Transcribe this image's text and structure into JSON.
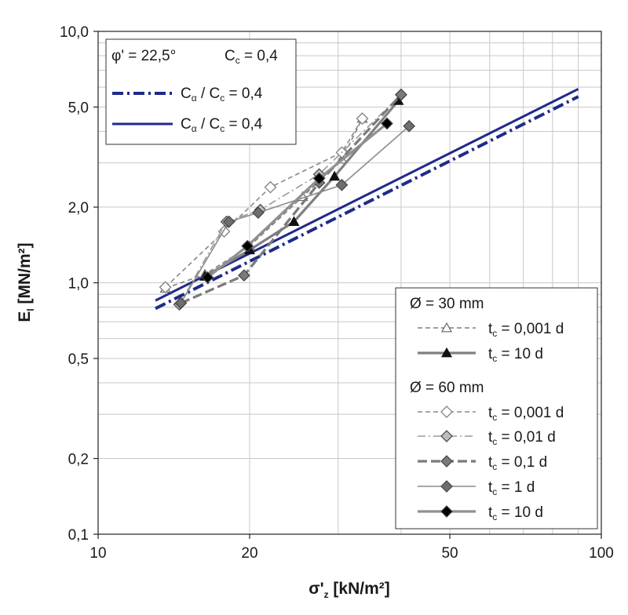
{
  "chart_data": {
    "type": "line",
    "x_scale": "log",
    "y_scale": "log",
    "xlim": [
      10,
      100
    ],
    "ylim": [
      0.1,
      10
    ],
    "grid": true,
    "x_ticks": [
      {
        "value": 10,
        "label": "10"
      },
      {
        "value": 20,
        "label": "20"
      },
      {
        "value": 50,
        "label": "50"
      },
      {
        "value": 100,
        "label": "100"
      }
    ],
    "y_ticks": [
      {
        "value": 0.1,
        "label": "0,1"
      },
      {
        "value": 0.2,
        "label": "0,2"
      },
      {
        "value": 0.5,
        "label": "0,5"
      },
      {
        "value": 1,
        "label": "1,0"
      },
      {
        "value": 2,
        "label": "2,0"
      },
      {
        "value": 5,
        "label": "5,0"
      },
      {
        "value": 10,
        "label": "10,0"
      }
    ],
    "xlabel": {
      "main": "σ'",
      "sub": "z",
      "tail": " [kN/m²]"
    },
    "ylabel": {
      "main": "E",
      "sub": "l",
      "tail": " [MN/m²]"
    },
    "legend_top": {
      "position": "top-left",
      "header": {
        "phi": "φ' = 22,5°",
        "cc": "C",
        "cc_sub": "c",
        "cc_tail": " = 0,4"
      },
      "entries": [
        {
          "pre": "C",
          "pre_sub": "α",
          "mid": " / C",
          "mid_sub": "c",
          "tail": " = 0,4",
          "style": "dashdot"
        },
        {
          "pre": "C",
          "pre_sub": "α",
          "mid": " / C",
          "mid_sub": "c",
          "tail": " = 0,4",
          "style": "solid"
        }
      ]
    },
    "legend_bottom": {
      "position": "bottom-right",
      "groups": [
        {
          "title": "Ø = 30 mm",
          "entries": [
            {
              "label_pre": "t",
              "label_sub": "c",
              "label_tail": " = 0,001 d",
              "series": 0
            },
            {
              "label_pre": "t",
              "label_sub": "c",
              "label_tail": " = 10 d",
              "series": 1
            }
          ]
        },
        {
          "title": "Ø = 60 mm",
          "entries": [
            {
              "label_pre": "t",
              "label_sub": "c",
              "label_tail": " = 0,001 d",
              "series": 2
            },
            {
              "label_pre": "t",
              "label_sub": "c",
              "label_tail": " = 0,01 d",
              "series": 3
            },
            {
              "label_pre": "t",
              "label_sub": "c",
              "label_tail": " = 0,1 d",
              "series": 4
            },
            {
              "label_pre": "t",
              "label_sub": "c",
              "label_tail": " = 1 d",
              "series": 5
            },
            {
              "label_pre": "t",
              "label_sub": "c",
              "label_tail": " = 10 d",
              "series": 6
            }
          ]
        }
      ]
    },
    "model_lines": [
      {
        "style": "dashdot",
        "color": "#1f2a8a",
        "x": [
          13,
          90
        ],
        "y": [
          0.79,
          5.5
        ]
      },
      {
        "style": "solid",
        "color": "#1f2a8a",
        "x": [
          13,
          90
        ],
        "y": [
          0.85,
          5.9
        ]
      }
    ],
    "series": [
      {
        "marker": "triangle-open",
        "line": "dashed",
        "color": "#7f7f7f",
        "fill": "#ffffff",
        "x": [
          13.6,
          16.3,
          20.0,
          25.5,
          30.5,
          33.5
        ],
        "y": [
          0.95,
          1.08,
          1.4,
          2.2,
          3.1,
          4.5
        ]
      },
      {
        "marker": "triangle-filled",
        "line": "solid-thick",
        "color": "#808080",
        "fill": "#111111",
        "x": [
          16.3,
          20.0,
          24.5,
          29.5,
          39.5
        ],
        "y": [
          1.06,
          1.35,
          1.75,
          2.65,
          5.3
        ]
      },
      {
        "marker": "diamond-open",
        "line": "dashed",
        "color": "#8a8a8a",
        "fill": "#ffffff",
        "x": [
          13.6,
          17.8,
          22.0,
          30.5,
          33.5
        ],
        "y": [
          0.96,
          1.6,
          2.4,
          3.3,
          4.5
        ]
      },
      {
        "marker": "diamond-light",
        "line": "dashdot",
        "color": "#9a9a9a",
        "fill": "#bdbdbd",
        "x": [
          14.5,
          18.0,
          21.0,
          27.5,
          40.0
        ],
        "y": [
          0.82,
          1.75,
          1.95,
          2.7,
          5.6
        ]
      },
      {
        "marker": "diamond-gray",
        "line": "dashed-thick",
        "color": "#7a7a7a",
        "fill": "#7a7a7a",
        "x": [
          14.6,
          19.5,
          27.5,
          40.0
        ],
        "y": [
          0.83,
          1.07,
          2.5,
          5.6
        ]
      },
      {
        "marker": "diamond-gray",
        "line": "solid-thin",
        "color": "#8c8c8c",
        "fill": "#6e6e6e",
        "x": [
          14.6,
          18.2,
          20.8,
          30.5,
          41.5
        ],
        "y": [
          0.83,
          1.75,
          1.9,
          2.45,
          4.2
        ]
      },
      {
        "marker": "diamond-black",
        "line": "solid-thick",
        "color": "#909090",
        "fill": "#000000",
        "x": [
          16.5,
          19.8,
          27.5,
          37.5
        ],
        "y": [
          1.05,
          1.4,
          2.6,
          4.3
        ]
      }
    ]
  }
}
